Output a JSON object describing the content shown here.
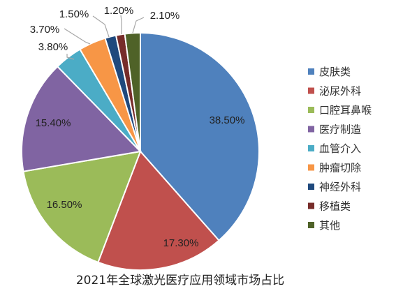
{
  "chart_data": {
    "type": "pie",
    "title": "2021年全球激光医疗应用领域市场占比",
    "legend_position": "right",
    "slices": [
      {
        "name": "皮肤类",
        "value": 38.5,
        "label": "38.50%",
        "color": "#4f81bd"
      },
      {
        "name": "泌尿外科",
        "value": 17.3,
        "label": "17.30%",
        "color": "#c0504d"
      },
      {
        "name": "口腔耳鼻喉",
        "value": 16.5,
        "label": "16.50%",
        "color": "#9bbb59"
      },
      {
        "name": "医疗制造",
        "value": 15.4,
        "label": "15.40%",
        "color": "#8064a2"
      },
      {
        "name": "血管介入",
        "value": 3.8,
        "label": "3.80%",
        "color": "#4bacc6"
      },
      {
        "name": "肿瘤切除",
        "value": 3.7,
        "label": "3.70%",
        "color": "#f79646"
      },
      {
        "name": "神经外科",
        "value": 1.5,
        "label": "1.50%",
        "color": "#1f497d"
      },
      {
        "name": "移植类",
        "value": 1.2,
        "label": "1.20%",
        "color": "#772c2a"
      },
      {
        "name": "其他",
        "value": 2.1,
        "label": "2.10%",
        "color": "#4f6228"
      }
    ]
  }
}
